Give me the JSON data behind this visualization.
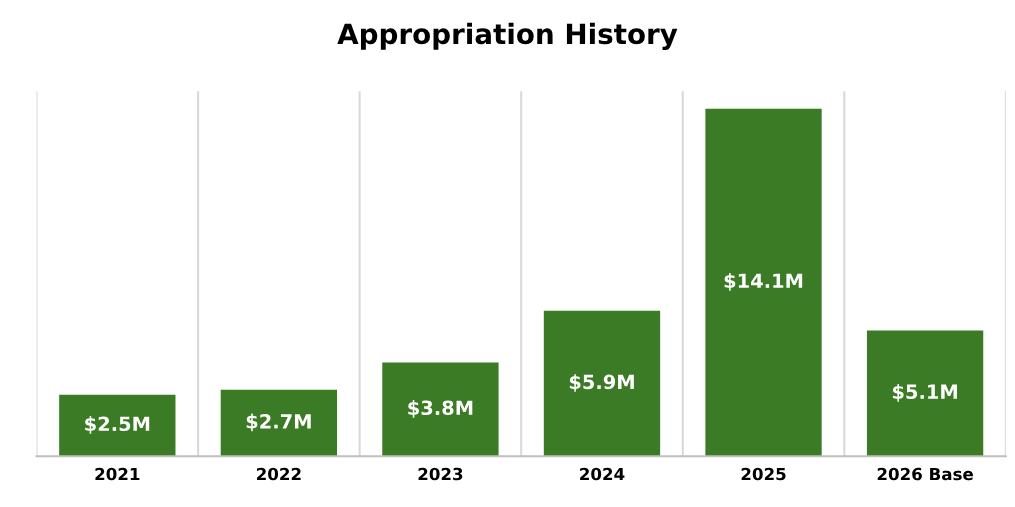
{
  "chart_data": {
    "type": "bar",
    "title": "Appropriation History",
    "categories": [
      "2021",
      "2022",
      "2023",
      "2024",
      "2025",
      "2026 Base"
    ],
    "values": [
      2.5,
      2.7,
      3.8,
      5.9,
      14.1,
      5.1
    ],
    "value_labels": [
      "$2.5M",
      "$2.7M",
      "$3.8M",
      "$5.9M",
      "$14.1M",
      "$5.1M"
    ],
    "color": "#3b7b25",
    "grid": "x",
    "legend": false
  }
}
